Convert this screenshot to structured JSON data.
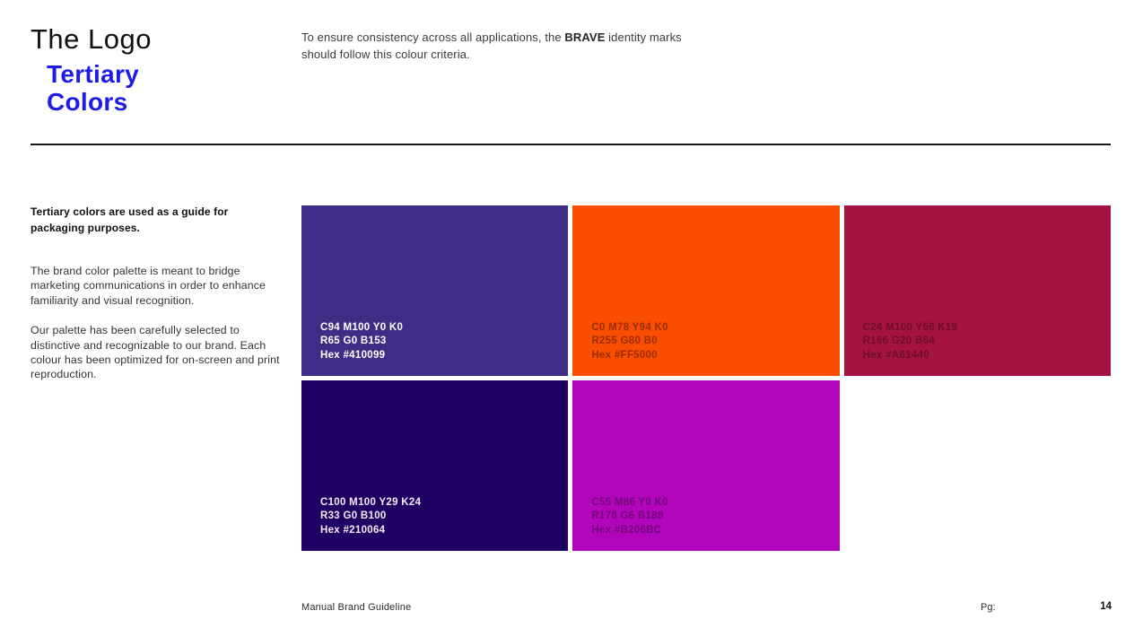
{
  "header": {
    "title": "The Logo",
    "subtitle": {
      "line1": "Tertiary",
      "line2": "Colors"
    },
    "intro": {
      "prefix": "To ensure consistency across all applications, the ",
      "brand": "BRAVE",
      "suffix": " identity marks should follow this colour criteria."
    }
  },
  "sidebar": {
    "lead": "Tertiary colors are used as a guide for packaging purposes.",
    "paragraph1": "The brand color palette is meant to bridge marketing communications in order to enhance familiarity and visual recognition.",
    "paragraph2": "Our palette has been carefully selected to distinctive and recognizable to our brand. Each colour has been optimized for on-screen and print reproduction."
  },
  "swatches": [
    {
      "name": "purple",
      "cmyk": "C94 M100 Y0 K0",
      "rgb": "R65 G0 B153",
      "hex": "Hex #410099",
      "bg": "#3F2C87",
      "label_color": "#FFFFFF"
    },
    {
      "name": "orange",
      "cmyk": "C0 M78 Y94 K0",
      "rgb": "R255 G80 B0",
      "hex": "Hex #FF5000",
      "bg": "#F94E00",
      "label_color": "#9A2E00"
    },
    {
      "name": "crimson",
      "cmyk": "C24 M100 Y56 K19",
      "rgb": "R166 G20 B64",
      "hex": "Hex #A61440",
      "bg": "#A51440",
      "label_color": "#6E0D2B"
    },
    {
      "name": "dark-purple",
      "cmyk": "C100 M100 Y29 K24",
      "rgb": "R33 G0 B100",
      "hex": "Hex #210064",
      "bg": "#210064",
      "label_color": "#EFEAF7"
    },
    {
      "name": "magenta",
      "cmyk": "C55 M86 Y0 K0",
      "rgb": "R178 G6 B188",
      "hex": "Hex #B206BC",
      "bg": "#B206BC",
      "label_color": "#74047A"
    }
  ],
  "footer": {
    "document_title": "Manual Brand Guideline",
    "page_label": "Pg:",
    "page_number": "14"
  },
  "colors": {
    "accent_blue": "#1D1CE6",
    "rule_color": "#15151C"
  }
}
